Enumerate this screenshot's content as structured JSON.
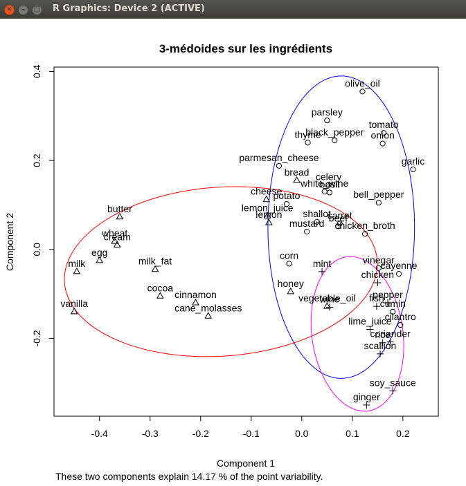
{
  "window": {
    "title": "R Graphics: Device 2 (ACTIVE)",
    "close_glyph": "×",
    "min_glyph": "–",
    "max_glyph": "□"
  },
  "chart_data": {
    "type": "scatter",
    "title": "3-médoides sur les ingrédients",
    "xlabel": "Component 1",
    "ylabel": "Component 2",
    "subtitle": "These two components explain 14.17 % of the point variability.",
    "xlim": [
      -0.49,
      0.27
    ],
    "ylim": [
      -0.375,
      0.41
    ],
    "xticks": [
      -0.4,
      -0.3,
      -0.2,
      -0.1,
      0.0,
      0.1,
      0.2
    ],
    "yticks": [
      -0.2,
      0.0,
      0.2,
      0.4
    ],
    "xtick_labels": [
      "-0.4",
      "-0.3",
      "-0.2",
      "-0.1",
      "0.0",
      "0.1",
      "0.2"
    ],
    "ytick_labels": [
      "-0.2",
      "0.0",
      "0.2",
      "0.4"
    ],
    "grid": false,
    "clusters": [
      {
        "symbol": "circle",
        "color": "#0000ff",
        "ellipse": {
          "cx": 0.078,
          "cy": 0.05,
          "rx": 0.145,
          "ry": 0.34,
          "angle": 0
        }
      },
      {
        "symbol": "triangle",
        "color": "#ff0000",
        "ellipse": {
          "cx": -0.16,
          "cy": -0.05,
          "rx": 0.31,
          "ry": 0.19,
          "angle": -4
        }
      },
      {
        "symbol": "plus",
        "color": "#ff00ff",
        "ellipse": {
          "cx": 0.11,
          "cy": -0.19,
          "rx": 0.09,
          "ry": 0.175,
          "angle": -8
        }
      }
    ],
    "points": [
      {
        "label": "olive_oil",
        "x": 0.12,
        "y": 0.355,
        "cluster": 0
      },
      {
        "label": "parsley",
        "x": 0.05,
        "y": 0.29,
        "cluster": 0
      },
      {
        "label": "tomato",
        "x": 0.162,
        "y": 0.262,
        "cluster": 0
      },
      {
        "label": "thyme",
        "x": 0.012,
        "y": 0.24,
        "cluster": 0
      },
      {
        "label": "black_pepper",
        "x": 0.065,
        "y": 0.245,
        "cluster": 0
      },
      {
        "label": "onion",
        "x": 0.16,
        "y": 0.238,
        "cluster": 0
      },
      {
        "label": "garlic",
        "x": 0.22,
        "y": 0.18,
        "cluster": 0
      },
      {
        "label": "parmesan_cheese",
        "x": -0.045,
        "y": 0.188,
        "cluster": 0
      },
      {
        "label": "celery",
        "x": 0.053,
        "y": 0.145,
        "cluster": 0
      },
      {
        "label": "white_wine",
        "x": 0.045,
        "y": 0.13,
        "cluster": 0
      },
      {
        "label": "basil",
        "x": 0.055,
        "y": 0.128,
        "cluster": 0
      },
      {
        "label": "potato",
        "x": -0.03,
        "y": 0.102,
        "cluster": 0
      },
      {
        "label": "bell_pepper",
        "x": 0.152,
        "y": 0.105,
        "cluster": 0
      },
      {
        "label": "shallot",
        "x": 0.03,
        "y": 0.062,
        "cluster": 0
      },
      {
        "label": "carrot",
        "x": 0.075,
        "y": 0.058,
        "cluster": 0
      },
      {
        "label": "beef",
        "x": 0.072,
        "y": 0.052,
        "cluster": 0
      },
      {
        "label": "mustard",
        "x": 0.01,
        "y": 0.04,
        "cluster": 0
      },
      {
        "label": "chicken_broth",
        "x": 0.125,
        "y": 0.035,
        "cluster": 0
      },
      {
        "label": "corn",
        "x": -0.025,
        "y": -0.032,
        "cluster": 0
      },
      {
        "label": "vinegar",
        "x": 0.152,
        "y": -0.042,
        "cluster": 0
      },
      {
        "label": "cayenne",
        "x": 0.192,
        "y": -0.055,
        "cluster": 0
      },
      {
        "label": "cumin",
        "x": 0.18,
        "y": -0.14,
        "cluster": 0
      },
      {
        "label": "cilantro",
        "x": 0.195,
        "y": -0.17,
        "cluster": 0
      },
      {
        "label": "bread",
        "x": -0.01,
        "y": 0.155,
        "cluster": 1
      },
      {
        "label": "cheese",
        "x": -0.07,
        "y": 0.112,
        "cluster": 1
      },
      {
        "label": "lemon_juice",
        "x": -0.068,
        "y": 0.075,
        "cluster": 1
      },
      {
        "label": "lemon",
        "x": -0.065,
        "y": 0.06,
        "cluster": 1
      },
      {
        "label": "butter",
        "x": -0.36,
        "y": 0.073,
        "cluster": 1
      },
      {
        "label": "wheat",
        "x": -0.37,
        "y": 0.018,
        "cluster": 1
      },
      {
        "label": "cream",
        "x": -0.365,
        "y": 0.01,
        "cluster": 1
      },
      {
        "label": "egg",
        "x": -0.4,
        "y": -0.025,
        "cluster": 1
      },
      {
        "label": "milk",
        "x": -0.445,
        "y": -0.05,
        "cluster": 1
      },
      {
        "label": "milk_fat",
        "x": -0.29,
        "y": -0.045,
        "cluster": 1
      },
      {
        "label": "cocoa",
        "x": -0.28,
        "y": -0.105,
        "cluster": 1
      },
      {
        "label": "cinnamon",
        "x": -0.21,
        "y": -0.12,
        "cluster": 1
      },
      {
        "label": "cane_molasses",
        "x": -0.185,
        "y": -0.15,
        "cluster": 1
      },
      {
        "label": "vanilla",
        "x": -0.45,
        "y": -0.14,
        "cluster": 1
      },
      {
        "label": "honey",
        "x": -0.022,
        "y": -0.095,
        "cluster": 1
      },
      {
        "label": "vegetable_oil",
        "x": 0.05,
        "y": -0.128,
        "cluster": 1
      },
      {
        "label": "mint",
        "x": 0.04,
        "y": -0.05,
        "cluster": 2
      },
      {
        "label": "wine",
        "x": 0.055,
        "y": -0.13,
        "cluster": 2
      },
      {
        "label": "chicken",
        "x": 0.15,
        "y": -0.075,
        "cluster": 2
      },
      {
        "label": "pepper",
        "x": 0.17,
        "y": -0.12,
        "cluster": 2
      },
      {
        "label": "fish",
        "x": 0.148,
        "y": -0.128,
        "cluster": 2
      },
      {
        "label": "lime_juice",
        "x": 0.135,
        "y": -0.18,
        "cluster": 2
      },
      {
        "label": "coriander",
        "x": 0.175,
        "y": -0.208,
        "cluster": 2
      },
      {
        "label": "rice",
        "x": 0.16,
        "y": -0.21,
        "cluster": 2
      },
      {
        "label": "scallion",
        "x": 0.155,
        "y": -0.235,
        "cluster": 2
      },
      {
        "label": "soy_sauce",
        "x": 0.18,
        "y": -0.318,
        "cluster": 2
      },
      {
        "label": "ginger",
        "x": 0.128,
        "y": -0.35,
        "cluster": 2
      }
    ]
  }
}
